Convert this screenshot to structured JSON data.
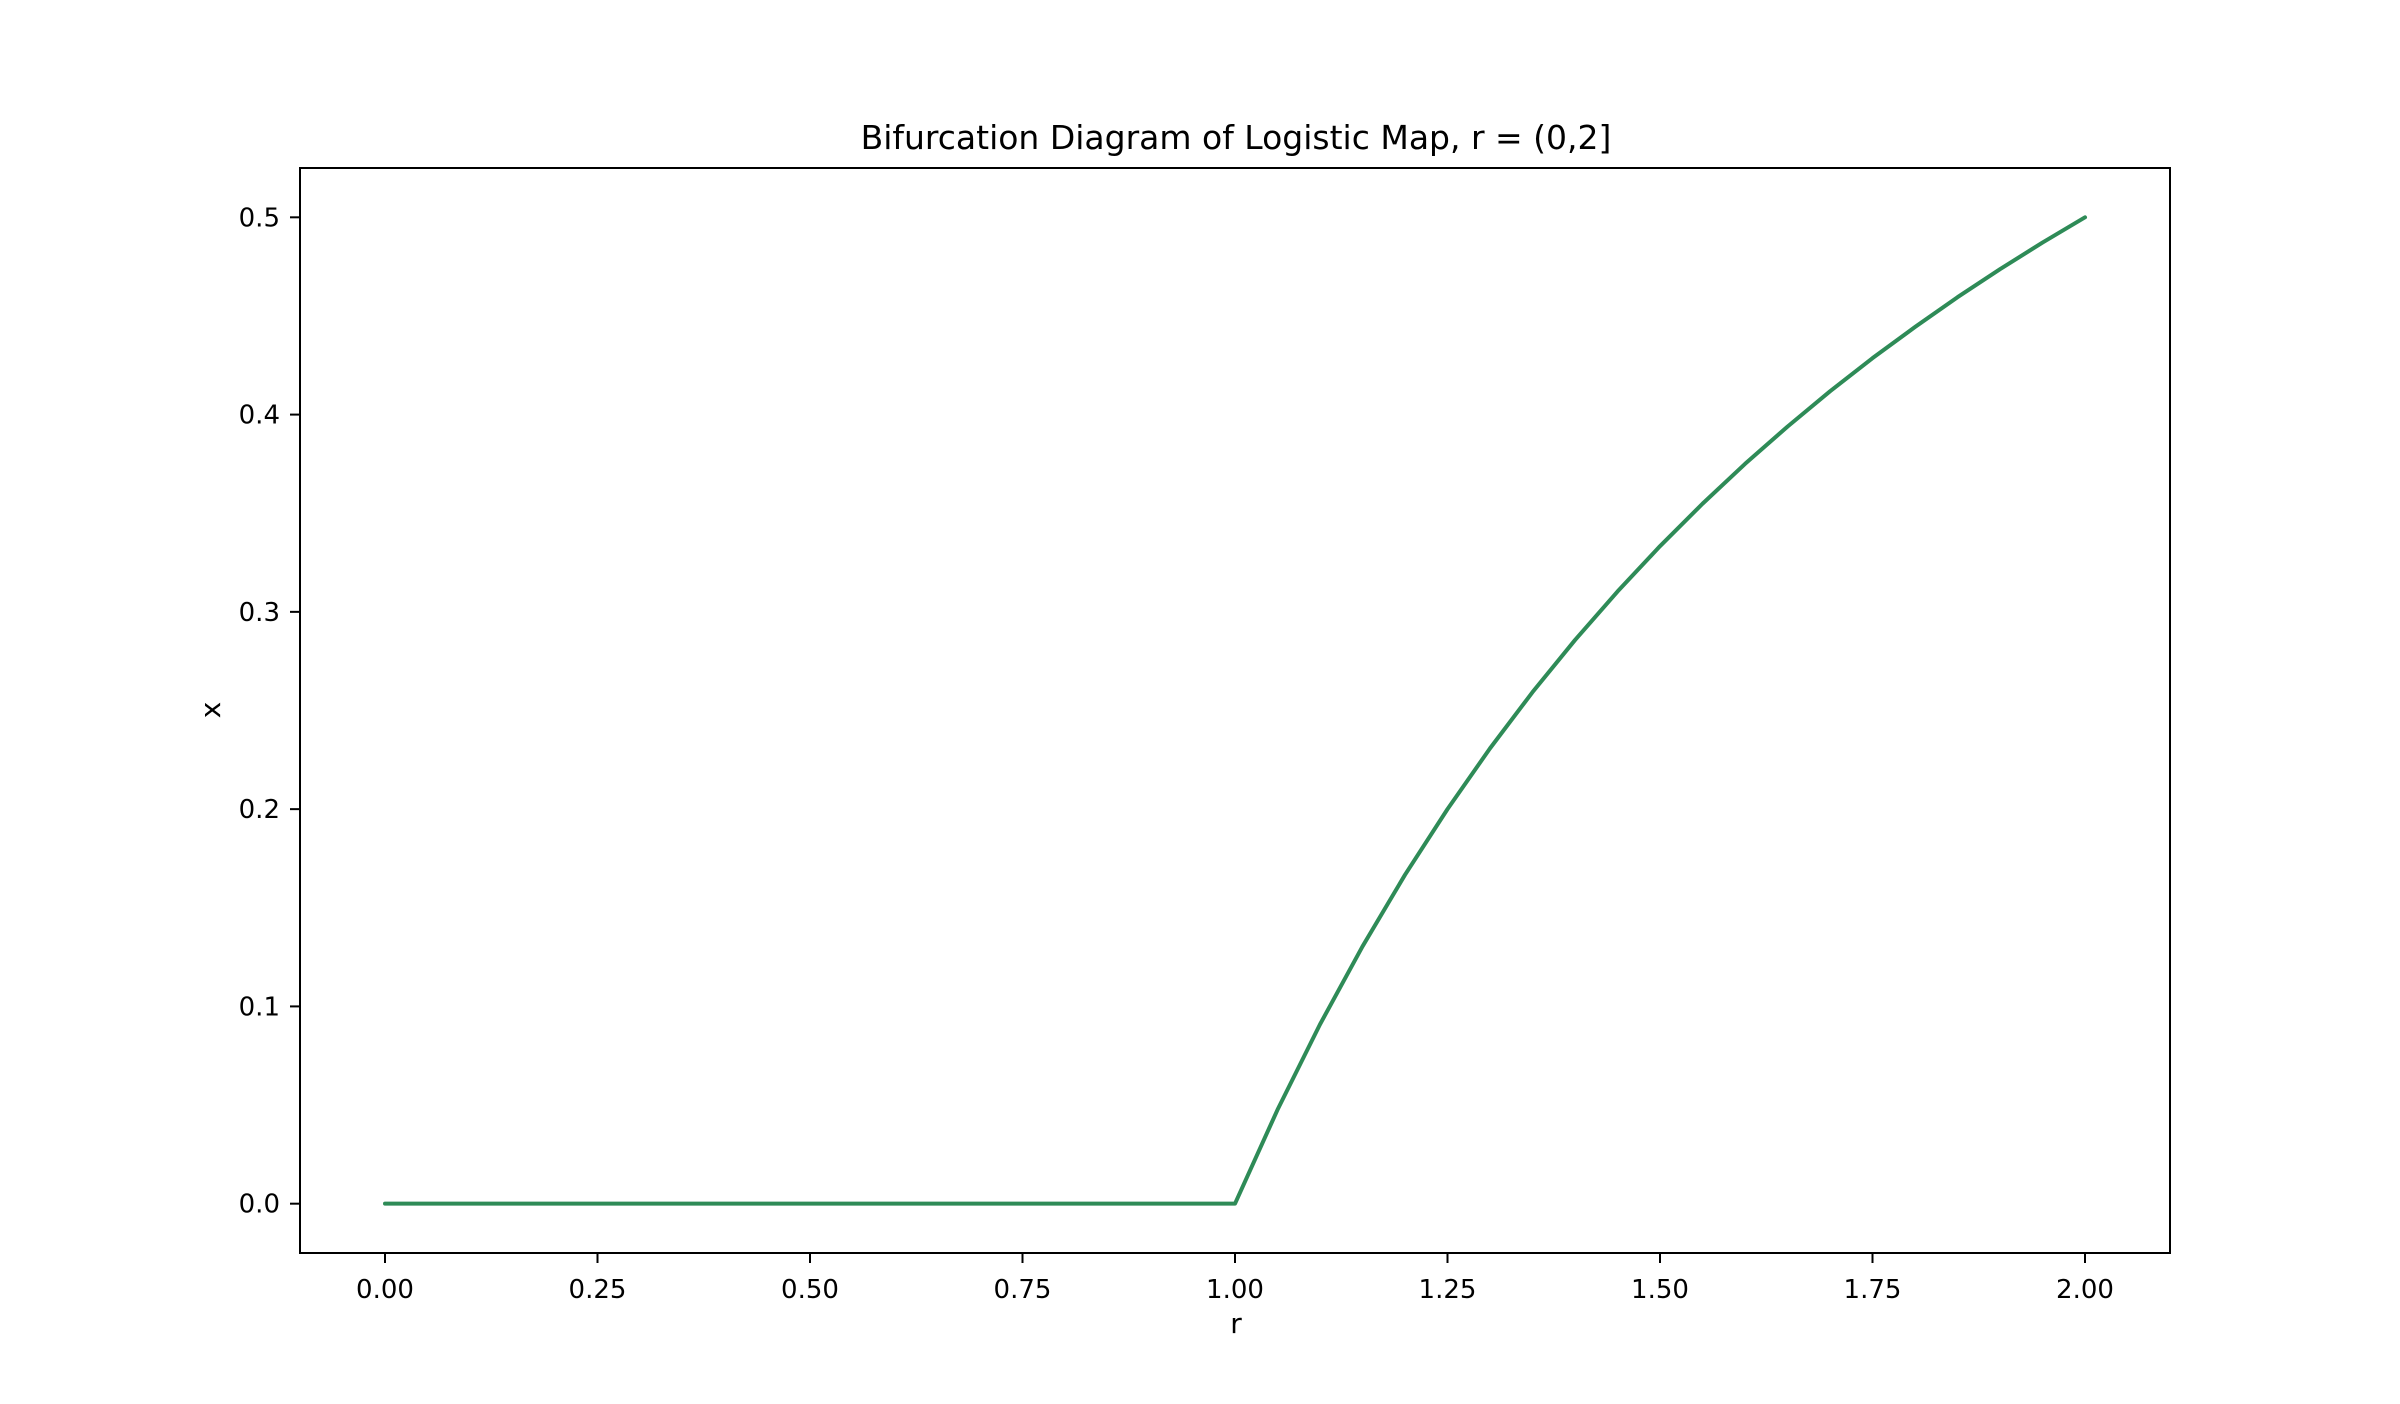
{
  "chart_data": {
    "type": "line",
    "title": "Bifurcation Diagram of Logistic Map, r = (0,2]",
    "xlabel": "r",
    "ylabel": "x",
    "xlim": [
      -0.1,
      2.1
    ],
    "ylim": [
      -0.025,
      0.525
    ],
    "x_ticks": [
      0.0,
      0.25,
      0.5,
      0.75,
      1.0,
      1.25,
      1.5,
      1.75,
      2.0
    ],
    "x_tick_labels": [
      "0.00",
      "0.25",
      "0.50",
      "0.75",
      "1.00",
      "1.25",
      "1.50",
      "1.75",
      "2.00"
    ],
    "y_ticks": [
      0.0,
      0.1,
      0.2,
      0.3,
      0.4,
      0.5
    ],
    "y_tick_labels": [
      "0.0",
      "0.1",
      "0.2",
      "0.3",
      "0.4",
      "0.5"
    ],
    "grid": false,
    "legend": "none",
    "line_color": "#2e8b57",
    "series": [
      {
        "x": [
          0.0,
          0.25,
          0.5,
          0.75,
          1.0,
          1.05,
          1.1,
          1.15,
          1.2,
          1.25,
          1.3,
          1.35,
          1.4,
          1.45,
          1.5,
          1.55,
          1.6,
          1.65,
          1.7,
          1.75,
          1.8,
          1.85,
          1.9,
          1.95,
          2.0
        ],
        "values": [
          0.0,
          0.0,
          0.0,
          0.0,
          0.0,
          0.0476,
          0.0909,
          0.1304,
          0.1667,
          0.2,
          0.2308,
          0.2593,
          0.2857,
          0.3103,
          0.3333,
          0.3548,
          0.375,
          0.3939,
          0.4118,
          0.4286,
          0.4444,
          0.4595,
          0.4737,
          0.4872,
          0.5
        ]
      }
    ]
  }
}
